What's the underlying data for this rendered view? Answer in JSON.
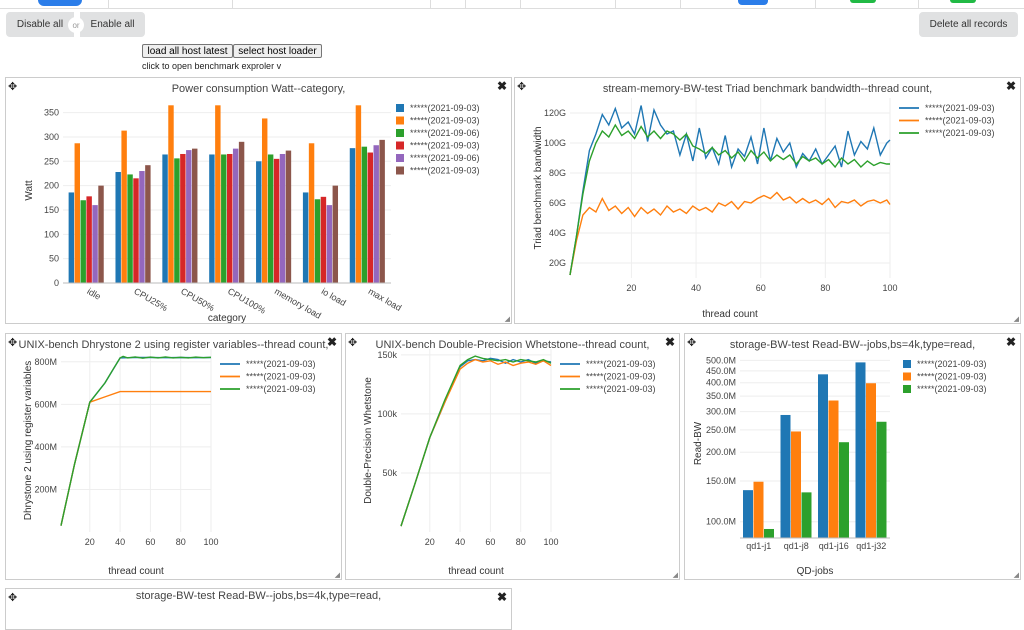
{
  "toolbar": {
    "disable_all": "Disable all",
    "or": "or",
    "enable_all": "Enable all",
    "delete_all": "Delete all records",
    "load_latest": "load all host latest",
    "select_loader": "select host loader",
    "hint": "click to open benchmark exproler v"
  },
  "charts": [
    {
      "type": "bar",
      "title": "Power consumption Watt--category,",
      "xlabel": "category",
      "ylabel": "Watt",
      "ylim": [
        0,
        380
      ],
      "yticks": [
        0,
        50,
        100,
        150,
        200,
        250,
        300,
        350
      ],
      "ytick_labels": [
        "0",
        "50",
        "100",
        "150",
        "200",
        "250",
        "300",
        "350"
      ],
      "categories": [
        "idle",
        "CPU25%",
        "CPU50%",
        "CPU100%",
        "memory load",
        "io load",
        "max load"
      ],
      "series": [
        {
          "name": "*****(2021-09-03)",
          "color": "#1f77b4",
          "values": [
            186,
            228,
            264,
            264,
            250,
            186,
            277
          ]
        },
        {
          "name": "*****(2021-09-03)",
          "color": "#ff7f0e",
          "values": [
            287,
            313,
            365,
            365,
            338,
            287,
            365
          ]
        },
        {
          "name": "*****(2021-09-06)",
          "color": "#2ca02c",
          "values": [
            170,
            223,
            256,
            264,
            264,
            172,
            280
          ]
        },
        {
          "name": "*****(2021-09-03)",
          "color": "#d62728",
          "values": [
            178,
            215,
            265,
            265,
            255,
            177,
            268
          ]
        },
        {
          "name": "*****(2021-09-06)",
          "color": "#9467bd",
          "values": [
            160,
            230,
            273,
            276,
            265,
            160,
            283
          ]
        },
        {
          "name": "*****(2021-09-03)",
          "color": "#8c564b",
          "values": [
            200,
            242,
            276,
            290,
            272,
            200,
            294
          ]
        }
      ],
      "legend": "right"
    },
    {
      "type": "line",
      "title": "stream-memory-BW-test Triad benchmark bandwidth--thread count,",
      "xlabel": "thread count",
      "ylabel": "Triad benchmark bandwidth",
      "xlim": [
        1,
        100
      ],
      "ylim": [
        10,
        130
      ],
      "xticks": [
        20,
        40,
        60,
        80,
        100
      ],
      "yticks": [
        20,
        40,
        60,
        80,
        100,
        120
      ],
      "ytick_labels": [
        "20G",
        "40G",
        "60G",
        "80G",
        "100G",
        "120G"
      ],
      "series": [
        {
          "name": "*****(2021-09-03)",
          "color": "#1f77b4",
          "x": [
            1,
            3,
            5,
            7,
            9,
            11,
            13,
            15,
            17,
            19,
            21,
            23,
            25,
            27,
            29,
            31,
            33,
            35,
            37,
            39,
            41,
            43,
            45,
            47,
            49,
            51,
            53,
            55,
            57,
            59,
            61,
            63,
            65,
            67,
            69,
            71,
            73,
            75,
            77,
            79,
            81,
            83,
            85,
            87,
            89,
            91,
            93,
            95,
            97,
            99,
            100
          ],
          "y": [
            12,
            38,
            68,
            95,
            106,
            119,
            112,
            123,
            110,
            114,
            106,
            125,
            101,
            122,
            112,
            106,
            108,
            92,
            106,
            88,
            110,
            90,
            97,
            86,
            105,
            84,
            96,
            91,
            104,
            86,
            110,
            88,
            103,
            94,
            100,
            84,
            93,
            88,
            96,
            86,
            92,
            98,
            84,
            108,
            92,
            101,
            96,
            110,
            92,
            100,
            102
          ]
        },
        {
          "name": "*****(2021-09-03)",
          "color": "#ff7f0e",
          "x": [
            1,
            3,
            5,
            7,
            9,
            11,
            13,
            15,
            17,
            19,
            21,
            23,
            25,
            27,
            29,
            31,
            33,
            35,
            37,
            39,
            41,
            43,
            45,
            47,
            49,
            51,
            53,
            55,
            57,
            59,
            61,
            63,
            65,
            67,
            69,
            71,
            73,
            75,
            77,
            79,
            81,
            83,
            85,
            87,
            89,
            91,
            93,
            95,
            97,
            99,
            100
          ],
          "y": [
            12,
            35,
            52,
            57,
            54,
            63,
            55,
            58,
            53,
            57,
            51,
            57,
            53,
            56,
            52,
            58,
            54,
            56,
            53,
            58,
            55,
            57,
            54,
            60,
            58,
            61,
            56,
            61,
            60,
            63,
            65,
            63,
            67,
            62,
            64,
            60,
            63,
            60,
            62,
            59,
            63,
            57,
            61,
            60,
            62,
            58,
            61,
            62,
            60,
            62,
            59
          ]
        },
        {
          "name": "*****(2021-09-03)",
          "color": "#2ca02c",
          "x": [
            1,
            3,
            5,
            7,
            9,
            11,
            13,
            15,
            17,
            19,
            21,
            23,
            25,
            27,
            29,
            31,
            33,
            35,
            37,
            39,
            41,
            43,
            45,
            47,
            49,
            51,
            53,
            55,
            57,
            59,
            61,
            63,
            65,
            67,
            69,
            71,
            73,
            75,
            77,
            79,
            81,
            83,
            85,
            87,
            89,
            91,
            93,
            95,
            97,
            99,
            100
          ],
          "y": [
            12,
            38,
            66,
            88,
            100,
            108,
            104,
            112,
            105,
            108,
            103,
            111,
            104,
            108,
            103,
            108,
            106,
            102,
            106,
            98,
            96,
            93,
            97,
            92,
            95,
            90,
            94,
            88,
            95,
            90,
            94,
            88,
            92,
            89,
            92,
            86,
            91,
            88,
            90,
            86,
            89,
            84,
            90,
            86,
            89,
            84,
            88,
            85,
            87,
            86,
            86
          ]
        }
      ],
      "legend": "top-right"
    },
    {
      "type": "line",
      "title": "UNIX-bench Dhrystone 2 using register variables--thread count,",
      "xlabel": "thread count",
      "ylabel": "Dhrystone 2 using register variables",
      "xlim": [
        1,
        100
      ],
      "ylim": [
        0,
        860
      ],
      "xticks": [
        20,
        40,
        60,
        80,
        100
      ],
      "yticks": [
        200,
        400,
        600,
        800
      ],
      "ytick_labels": [
        "200M",
        "400M",
        "600M",
        "800M"
      ],
      "series": [
        {
          "name": "*****(2021-09-03)",
          "color": "#1f77b4",
          "x": [
            1,
            10,
            20,
            30,
            40,
            50,
            60,
            70,
            80,
            90,
            100
          ],
          "y": [
            30,
            320,
            610,
            700,
            818,
            820,
            820,
            819,
            820,
            819,
            820
          ]
        },
        {
          "name": "*****(2021-09-03)",
          "color": "#ff7f0e",
          "x": [
            1,
            10,
            20,
            30,
            40,
            50,
            60,
            70,
            80,
            90,
            100
          ],
          "y": [
            30,
            320,
            610,
            635,
            660,
            660,
            660,
            660,
            660,
            660,
            660
          ]
        },
        {
          "name": "*****(2021-09-03)",
          "color": "#2ca02c",
          "x": [
            1,
            10,
            20,
            30,
            35,
            40,
            42,
            45,
            50,
            55,
            60,
            65,
            70,
            75,
            80,
            85,
            90,
            95,
            100
          ],
          "y": [
            30,
            320,
            610,
            700,
            760,
            818,
            825,
            818,
            823,
            817,
            822,
            818,
            823,
            818,
            821,
            818,
            822,
            819,
            821
          ]
        }
      ],
      "legend": "top-right"
    },
    {
      "type": "line",
      "title": "UNIX-bench Double-Precision Whetstone--thread count,",
      "xlabel": "thread count",
      "ylabel": "Double-Precision Whetstone",
      "xlim": [
        1,
        100
      ],
      "ylim": [
        0,
        155
      ],
      "xticks": [
        20,
        40,
        60,
        80,
        100
      ],
      "yticks": [
        50,
        100,
        150
      ],
      "ytick_labels": [
        "50k",
        "100k",
        "150k"
      ],
      "series": [
        {
          "name": "*****(2021-09-03)",
          "color": "#1f77b4",
          "x": [
            1,
            10,
            20,
            30,
            40,
            45,
            50,
            55,
            60,
            65,
            70,
            75,
            80,
            85,
            90,
            95,
            100
          ],
          "y": [
            5,
            40,
            80,
            110,
            140,
            145,
            146,
            145,
            147,
            146,
            143,
            146,
            144,
            146,
            143,
            145,
            144
          ]
        },
        {
          "name": "*****(2021-09-03)",
          "color": "#ff7f0e",
          "x": [
            1,
            10,
            20,
            30,
            40,
            45,
            50,
            55,
            60,
            65,
            70,
            75,
            80,
            85,
            90,
            95,
            100
          ],
          "y": [
            5,
            40,
            80,
            110,
            138,
            143,
            146,
            144,
            145,
            142,
            144,
            141,
            143,
            144,
            142,
            145,
            141
          ]
        },
        {
          "name": "*****(2021-09-03)",
          "color": "#2ca02c",
          "x": [
            1,
            10,
            20,
            30,
            40,
            45,
            50,
            55,
            60,
            65,
            70,
            75,
            80,
            85,
            90,
            95,
            100
          ],
          "y": [
            5,
            40,
            80,
            112,
            141,
            146,
            149,
            147,
            146,
            145,
            146,
            144,
            146,
            145,
            144,
            146,
            143
          ]
        }
      ],
      "legend": "top-right"
    },
    {
      "type": "bar",
      "title": "storage-BW-test Read-BW--jobs,bs=4k,type=read,",
      "xlabel": "QD-jobs",
      "ylabel": "Read-BW",
      "log_scale": true,
      "ylim": [
        85,
        560
      ],
      "yticks": [
        100,
        150,
        200,
        250,
        300,
        350,
        400,
        450,
        500
      ],
      "ytick_labels": [
        "100.0M",
        "150.0M",
        "200.0M",
        "250.0M",
        "300.0M",
        "350.0M",
        "400.0M",
        "450.0M",
        "500.0M"
      ],
      "categories": [
        "qd1-j1",
        "qd1-j8",
        "qd1-j16",
        "qd1-j32"
      ],
      "series": [
        {
          "name": "*****(2021-09-03)",
          "color": "#1f77b4",
          "values": [
            137,
            290,
            435,
            490
          ]
        },
        {
          "name": "*****(2021-09-03)",
          "color": "#ff7f0e",
          "values": [
            149,
            246,
            335,
            398
          ]
        },
        {
          "name": "*****(2021-09-03)",
          "color": "#2ca02c",
          "values": [
            93,
            134,
            221,
            271
          ]
        }
      ],
      "legend": "top-right"
    },
    {
      "type": "bar",
      "title": "storage-BW-test Read-BW--jobs,bs=4k,type=read,",
      "series": []
    }
  ]
}
